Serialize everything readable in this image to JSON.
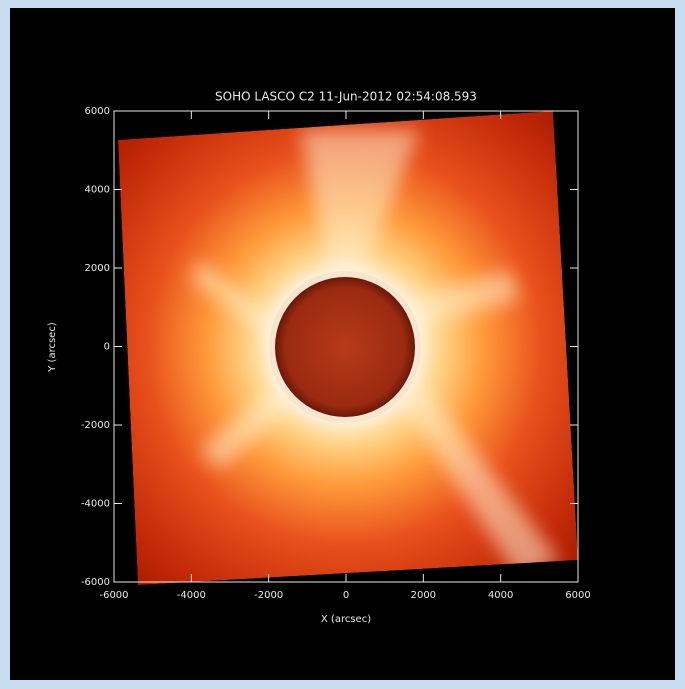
{
  "chart_data": {
    "type": "image",
    "title": "SOHO LASCO C2 11-Jun-2012 02:54:08.593",
    "xlabel": "X (arcsec)",
    "ylabel": "Y (arcsec)",
    "xlim": [
      -6000,
      6000
    ],
    "ylim": [
      -6000,
      6000
    ],
    "xticks": [
      -6000,
      -4000,
      -2000,
      0,
      2000,
      4000,
      6000
    ],
    "yticks": [
      -6000,
      -4000,
      -2000,
      0,
      2000,
      4000,
      6000
    ]
  }
}
